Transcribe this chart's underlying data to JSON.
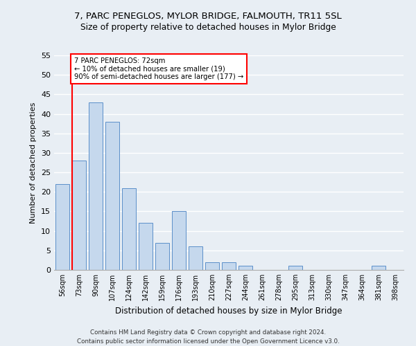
{
  "title1": "7, PARC PENEGLOS, MYLOR BRIDGE, FALMOUTH, TR11 5SL",
  "title2": "Size of property relative to detached houses in Mylor Bridge",
  "xlabel": "Distribution of detached houses by size in Mylor Bridge",
  "ylabel": "Number of detached properties",
  "categories": [
    "56sqm",
    "73sqm",
    "90sqm",
    "107sqm",
    "124sqm",
    "142sqm",
    "159sqm",
    "176sqm",
    "193sqm",
    "210sqm",
    "227sqm",
    "244sqm",
    "261sqm",
    "278sqm",
    "295sqm",
    "313sqm",
    "330sqm",
    "347sqm",
    "364sqm",
    "381sqm",
    "398sqm"
  ],
  "values": [
    22,
    28,
    43,
    38,
    21,
    12,
    7,
    15,
    6,
    2,
    2,
    1,
    0,
    0,
    1,
    0,
    0,
    0,
    0,
    1,
    0
  ],
  "bar_color": "#c5d8ed",
  "bar_edge_color": "#5b8fc9",
  "annotation_text": "7 PARC PENEGLOS: 72sqm\n← 10% of detached houses are smaller (19)\n90% of semi-detached houses are larger (177) →",
  "annotation_box_color": "white",
  "annotation_box_edge_color": "red",
  "vline_color": "red",
  "ylim": [
    0,
    55
  ],
  "yticks": [
    0,
    5,
    10,
    15,
    20,
    25,
    30,
    35,
    40,
    45,
    50,
    55
  ],
  "footer_line1": "Contains HM Land Registry data © Crown copyright and database right 2024.",
  "footer_line2": "Contains public sector information licensed under the Open Government Licence v3.0.",
  "bg_color": "#e8eef4",
  "grid_color": "white"
}
